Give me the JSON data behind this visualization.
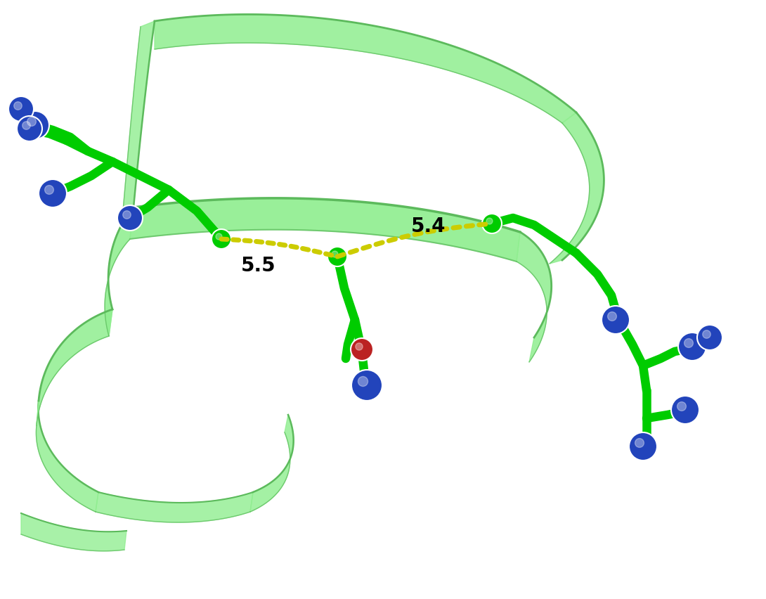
{
  "background_color": "#ffffff",
  "helix_ribbon_color": "#90ee90",
  "helix_ribbon_edge_color": "#5cba5c",
  "helix_ribbon_shadow": "#70c870",
  "stick_color": "#00cc00",
  "nitrogen_color": "#2244bb",
  "oxygen_color": "#bb2222",
  "distance_line_color": "#cccc00",
  "distance_label_55": "5.5",
  "distance_label_54": "5.4",
  "label_fontsize": 20,
  "label_color": "#000000",
  "figsize": [
    10.9,
    8.52
  ],
  "dpi": 100
}
